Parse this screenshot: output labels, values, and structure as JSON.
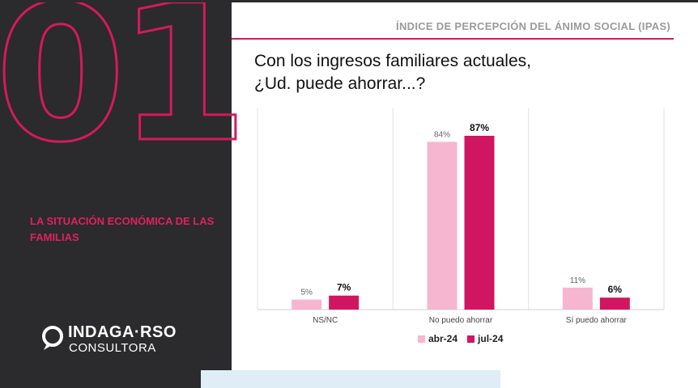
{
  "sidebar": {
    "section_number": "01",
    "section_title": "LA SITUACIÓN ECONÓMICA DE LAS FAMILIAS",
    "logo_name": "INDAGA·RSO",
    "logo_sub": "CONSULTORA"
  },
  "header": {
    "title": "ÍNDICE DE PERCEPCIÓN DEL ÁNIMO SOCIAL (IPAS)"
  },
  "question": {
    "line1": "Con los ingresos familiares actuales,",
    "line2": "¿Ud. puede ahorrar...?"
  },
  "colors": {
    "accent": "#d41a5c",
    "sidebar_bg": "#2b2a2c",
    "series_apr": "#f6b6cf",
    "series_jul": "#d01660"
  },
  "chart_data": {
    "type": "bar",
    "categories": [
      "NS/NC",
      "No puedo ahorrar",
      "Sí puedo ahorrar"
    ],
    "series": [
      {
        "name": "abr-24",
        "values": [
          5,
          84,
          11
        ],
        "labels": [
          "5%",
          "84%",
          "11%"
        ],
        "color": "#f6b6cf",
        "label_bold": false
      },
      {
        "name": "jul-24",
        "values": [
          7,
          87,
          6
        ],
        "labels": [
          "7%",
          "87%",
          "6%"
        ],
        "color": "#d01660",
        "label_bold": true
      }
    ],
    "ylim": [
      0,
      100
    ],
    "grid": false,
    "legend_position": "bottom"
  }
}
